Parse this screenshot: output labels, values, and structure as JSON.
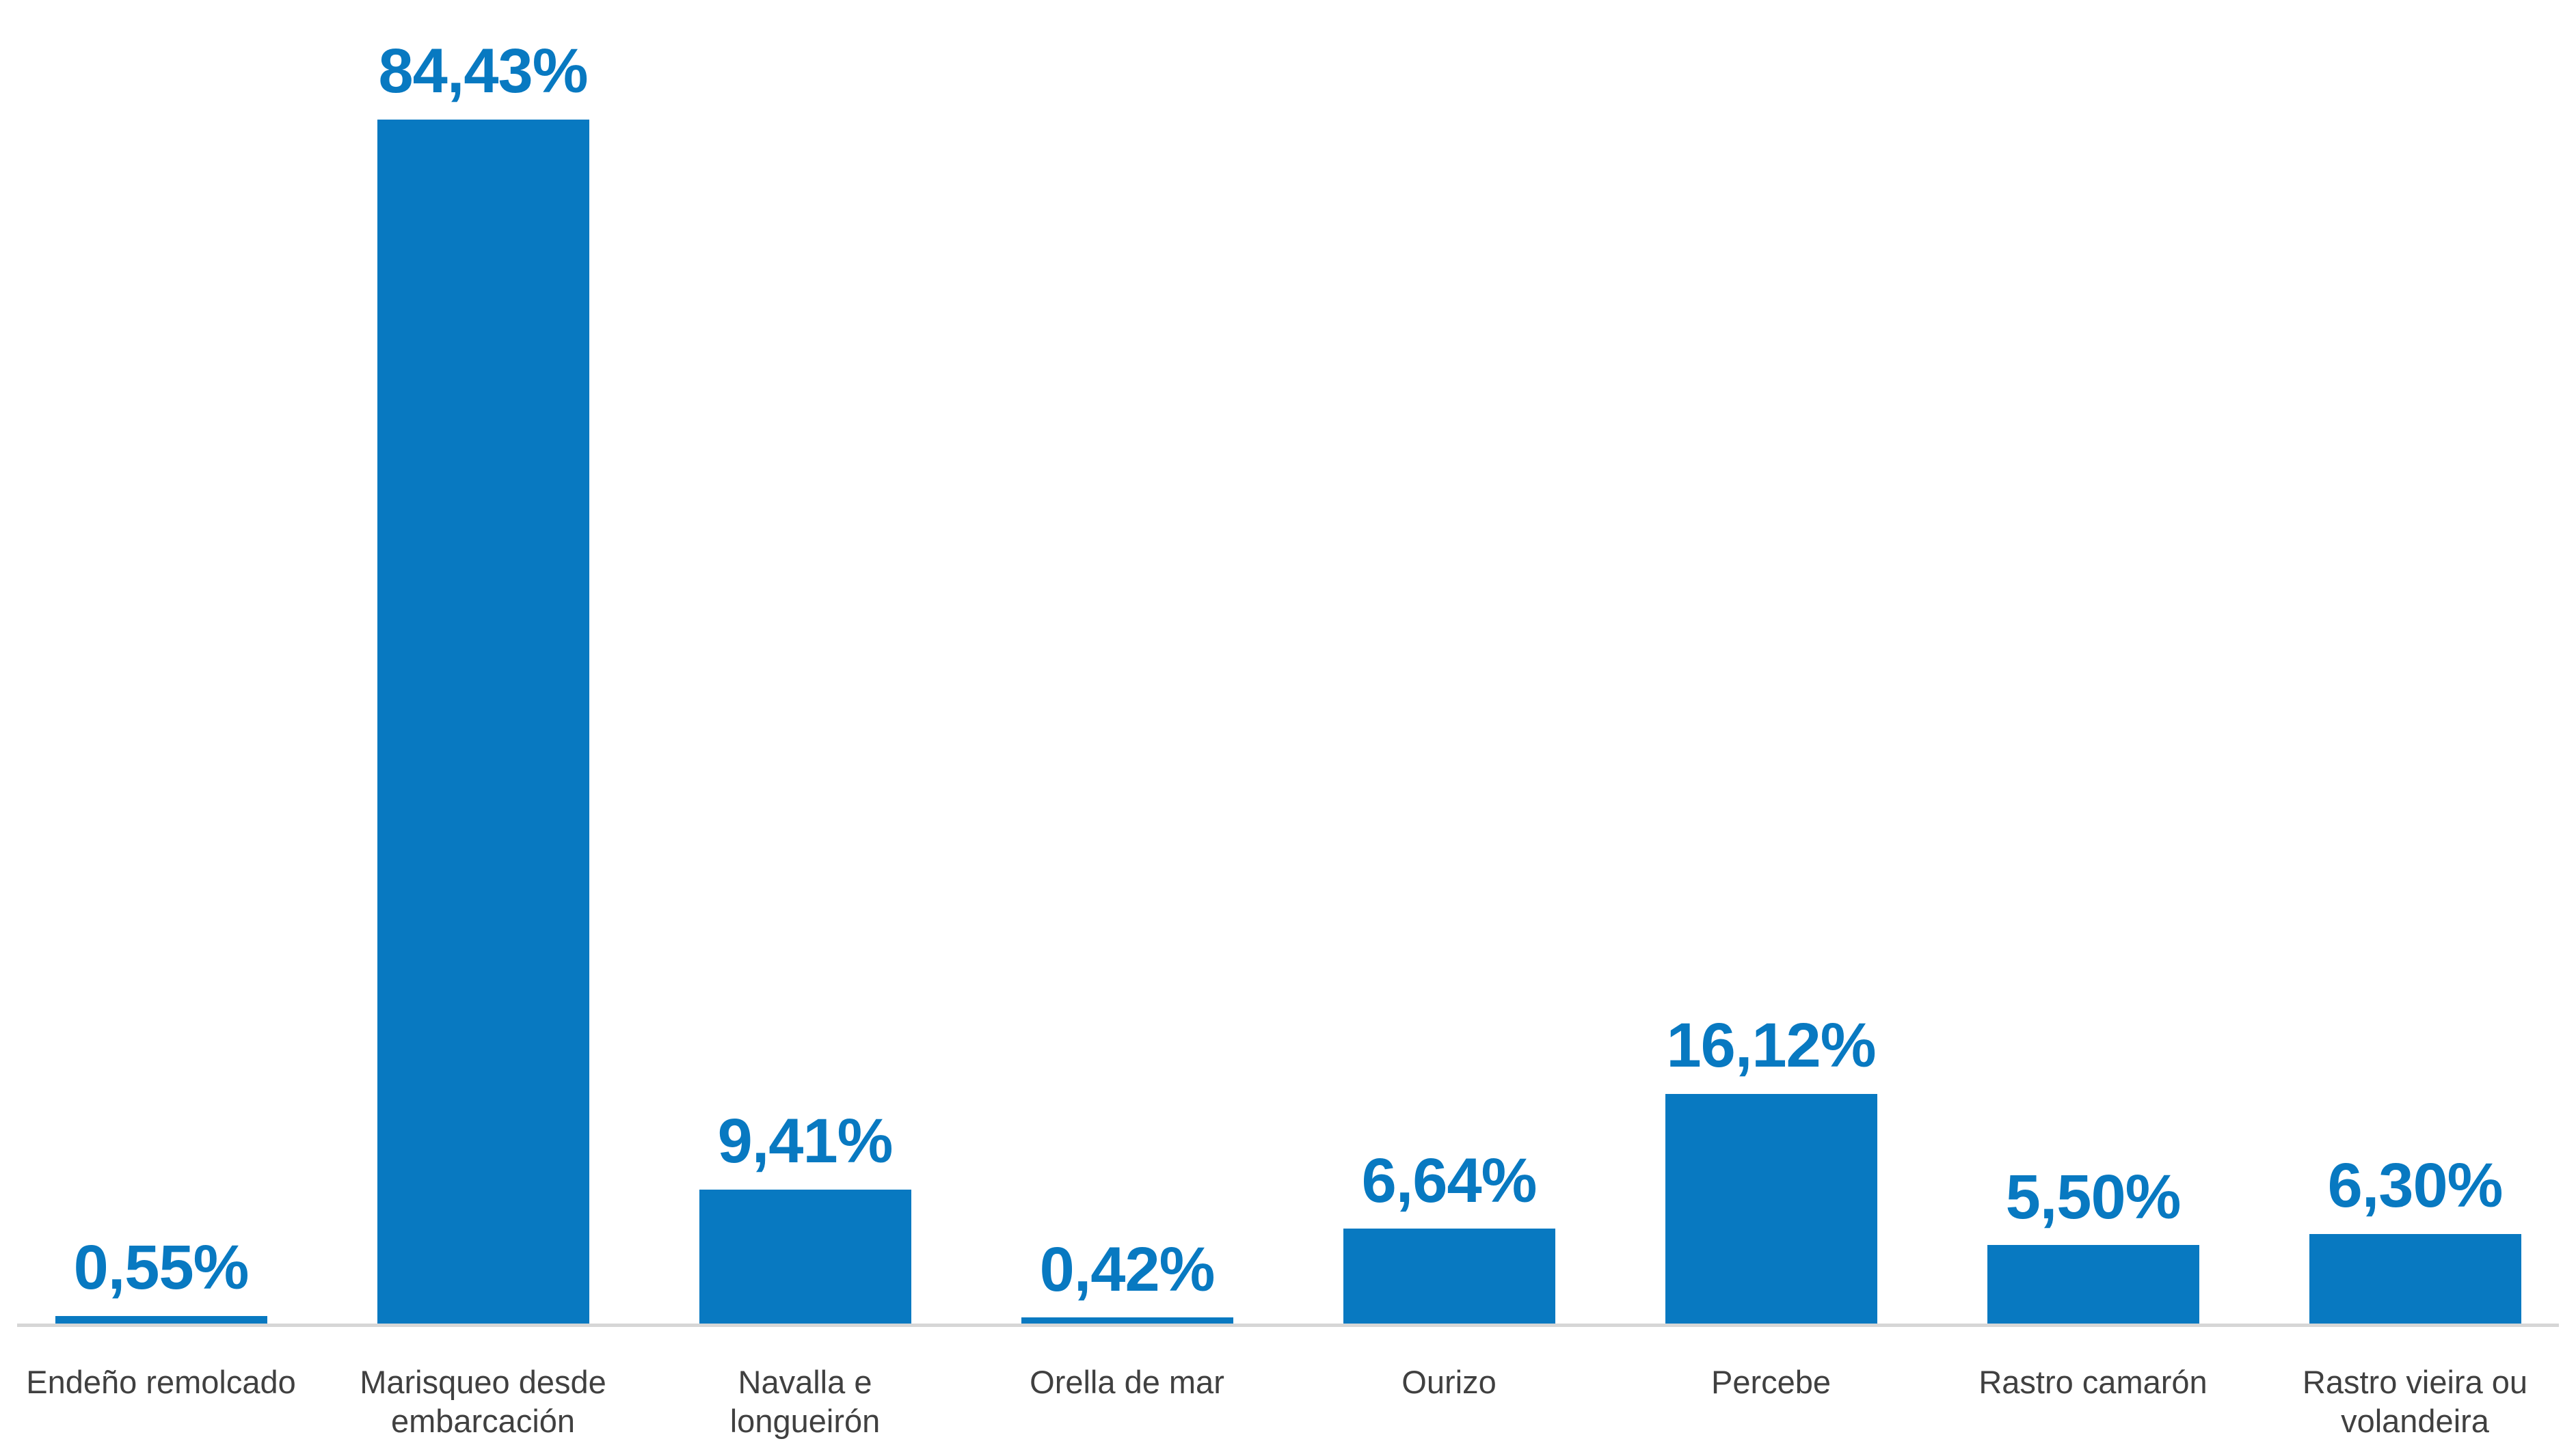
{
  "chart_data": {
    "type": "bar",
    "title": "",
    "xlabel": "",
    "ylabel": "",
    "ylim": [
      0,
      92.8
    ],
    "grid": false,
    "legend": false,
    "axis_labels_visible": false,
    "data_labels_visible": true,
    "decimal_separator": ",",
    "categories": [
      "Endeño remolcado",
      "Marisqueo desde embarcación",
      "Navalla e longueirón",
      "Orella de mar",
      "Ourizo",
      "Percebe",
      "Rastro camarón",
      "Rastro vieira ou volandeira"
    ],
    "values": [
      0.55,
      84.43,
      9.41,
      0.42,
      6.64,
      16.12,
      5.5,
      6.3
    ],
    "value_labels": [
      "0,55%",
      "84,43%",
      "9,41%",
      "0,42%",
      "6,64%",
      "16,12%",
      "5,50%",
      "6,30%"
    ],
    "colors": {
      "bar": "#0879c1",
      "value_label": "#0879c1",
      "category_label": "#404040",
      "axis_line": "#d6d6d6",
      "background": "#ffffff"
    }
  }
}
